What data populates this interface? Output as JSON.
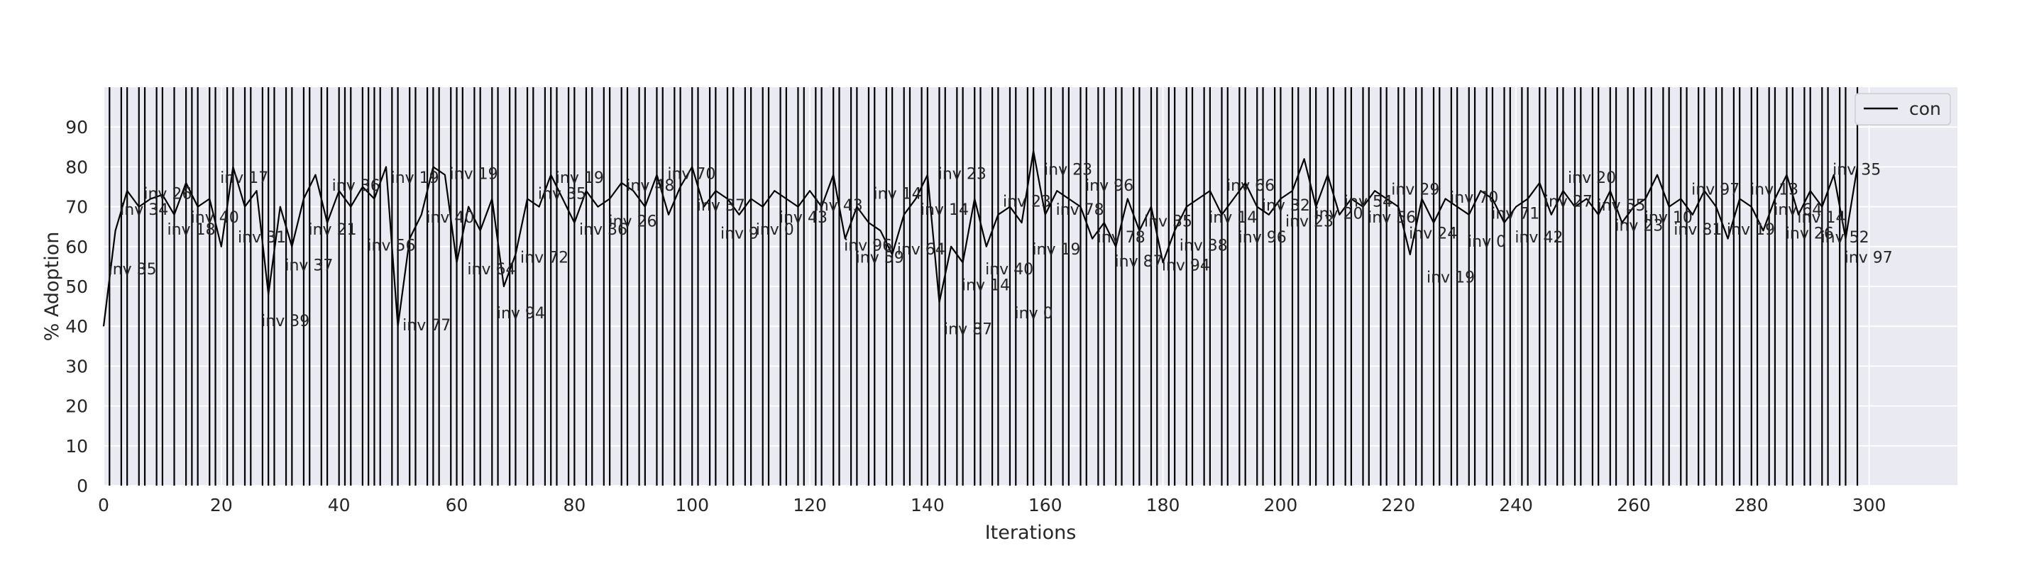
{
  "chart_data": {
    "type": "line",
    "title": "",
    "xlabel": "Iterations",
    "ylabel": "% Adoption",
    "xlim": [
      0,
      315
    ],
    "ylim": [
      0,
      100
    ],
    "xticks": [
      0,
      20,
      40,
      60,
      80,
      100,
      120,
      140,
      160,
      180,
      200,
      220,
      240,
      260,
      280,
      300
    ],
    "yticks": [
      0,
      10,
      20,
      30,
      40,
      50,
      60,
      70,
      80,
      90
    ],
    "grid": true,
    "legend_position": "top-right",
    "legend": [
      "con"
    ],
    "series": [
      {
        "name": "con",
        "color": "#000000",
        "x": [
          0,
          2,
          4,
          6,
          8,
          10,
          12,
          14,
          16,
          18,
          20,
          22,
          24,
          26,
          28,
          30,
          32,
          34,
          36,
          38,
          40,
          42,
          44,
          46,
          48,
          50,
          52,
          54,
          56,
          58,
          60,
          62,
          64,
          66,
          68,
          70,
          72,
          74,
          76,
          78,
          80,
          82,
          84,
          86,
          88,
          90,
          92,
          94,
          96,
          98,
          100,
          102,
          104,
          106,
          108,
          110,
          112,
          114,
          116,
          118,
          120,
          122,
          124,
          126,
          128,
          130,
          132,
          134,
          136,
          138,
          140,
          142,
          144,
          146,
          148,
          150,
          152,
          154,
          156,
          158,
          160,
          162,
          164,
          166,
          168,
          170,
          172,
          174,
          176,
          178,
          180,
          182,
          184,
          186,
          188,
          190,
          192,
          194,
          196,
          198,
          200,
          202,
          204,
          206,
          208,
          210,
          212,
          214,
          216,
          218,
          220,
          222,
          224,
          226,
          228,
          230,
          232,
          234,
          236,
          238,
          240,
          242,
          244,
          246,
          248,
          250,
          252,
          254,
          256,
          258,
          260,
          262,
          264,
          266,
          268,
          270,
          272,
          274,
          276,
          278,
          280,
          282,
          284,
          286,
          288,
          290,
          292,
          294,
          296,
          298
        ],
        "y": [
          40,
          64,
          74,
          70,
          72,
          73,
          68,
          76,
          70,
          72,
          60,
          80,
          70,
          74,
          48,
          70,
          60,
          72,
          78,
          66,
          74,
          70,
          75,
          72,
          80,
          40,
          62,
          68,
          80,
          78,
          56,
          70,
          64,
          72,
          50,
          58,
          72,
          70,
          78,
          72,
          66,
          74,
          70,
          72,
          76,
          74,
          70,
          78,
          68,
          75,
          80,
          70,
          74,
          72,
          68,
          72,
          70,
          74,
          72,
          70,
          74,
          70,
          78,
          62,
          70,
          66,
          64,
          58,
          68,
          72,
          78,
          46,
          60,
          56,
          72,
          60,
          68,
          70,
          66,
          84,
          68,
          74,
          72,
          70,
          62,
          66,
          60,
          72,
          64,
          70,
          56,
          64,
          70,
          72,
          74,
          68,
          72,
          76,
          70,
          68,
          72,
          74,
          82,
          70,
          78,
          68,
          72,
          70,
          74,
          72,
          70,
          58,
          72,
          66,
          72,
          70,
          68,
          74,
          72,
          66,
          70,
          72,
          76,
          68,
          74,
          70,
          72,
          68,
          74,
          66,
          70,
          72,
          78,
          70,
          72,
          68,
          74,
          70,
          62,
          72,
          70,
          64,
          72,
          78,
          68,
          74,
          70,
          78,
          62,
          80
        ]
      }
    ],
    "vlines_x": [
      1,
      3,
      4,
      6,
      7,
      9,
      10,
      12,
      14,
      15,
      16,
      18,
      19,
      21,
      22,
      24,
      25,
      27,
      28,
      29,
      31,
      32,
      34,
      35,
      37,
      38,
      40,
      41,
      42,
      44,
      45,
      46,
      47,
      49,
      50,
      52,
      53,
      55,
      56,
      57,
      59,
      60,
      61,
      63,
      64,
      66,
      67,
      69,
      70,
      72,
      73,
      75,
      76,
      77,
      79,
      80,
      82,
      83,
      85,
      86,
      88,
      89,
      91,
      92,
      94,
      95,
      97,
      98,
      100,
      101,
      103,
      104,
      106,
      107,
      109,
      110,
      112,
      113,
      115,
      116,
      118,
      119,
      121,
      122,
      124,
      125,
      127,
      128,
      130,
      131,
      133,
      134,
      136,
      137,
      139,
      140,
      142,
      143,
      145,
      146,
      148,
      149,
      151,
      152,
      154,
      155,
      157,
      158,
      160,
      161,
      163,
      164,
      166,
      167,
      169,
      170,
      172,
      173,
      175,
      176,
      178,
      179,
      181,
      182,
      184,
      185,
      187,
      188,
      190,
      191,
      193,
      194,
      196,
      197,
      199,
      200,
      202,
      203,
      205,
      206,
      208,
      209,
      211,
      212,
      214,
      215,
      217,
      218,
      220,
      221,
      223,
      224,
      226,
      227,
      229,
      230,
      232,
      233,
      235,
      236,
      238,
      239,
      241,
      242,
      244,
      245,
      247,
      248,
      250,
      251,
      253,
      254,
      256,
      257,
      259,
      260,
      262,
      263,
      265,
      266,
      268,
      269,
      271,
      272,
      274,
      275,
      277,
      278,
      280,
      281,
      283,
      284,
      286,
      287,
      289,
      290,
      292,
      293,
      295,
      296,
      298
    ],
    "annotations": [
      {
        "x": 2,
        "y": 53,
        "text": "inv 35"
      },
      {
        "x": 4,
        "y": 68,
        "text": "inv 34"
      },
      {
        "x": 8,
        "y": 72,
        "text": "inv 26"
      },
      {
        "x": 12,
        "y": 63,
        "text": "inv 18"
      },
      {
        "x": 16,
        "y": 66,
        "text": "inv 40"
      },
      {
        "x": 21,
        "y": 76,
        "text": "inv 17"
      },
      {
        "x": 24,
        "y": 61,
        "text": "inv 31"
      },
      {
        "x": 28,
        "y": 40,
        "text": "inv 39"
      },
      {
        "x": 32,
        "y": 54,
        "text": "inv 37"
      },
      {
        "x": 36,
        "y": 63,
        "text": "inv 21"
      },
      {
        "x": 40,
        "y": 74,
        "text": "inv 36"
      },
      {
        "x": 46,
        "y": 59,
        "text": "inv 56"
      },
      {
        "x": 50,
        "y": 76,
        "text": "inv 19"
      },
      {
        "x": 52,
        "y": 39,
        "text": "inv 77"
      },
      {
        "x": 56,
        "y": 66,
        "text": "inv 40"
      },
      {
        "x": 60,
        "y": 77,
        "text": "inv 19"
      },
      {
        "x": 63,
        "y": 53,
        "text": "inv 64"
      },
      {
        "x": 68,
        "y": 42,
        "text": "inv 94"
      },
      {
        "x": 72,
        "y": 56,
        "text": "inv 72"
      },
      {
        "x": 75,
        "y": 72,
        "text": "inv 35"
      },
      {
        "x": 78,
        "y": 76,
        "text": "inv 19"
      },
      {
        "x": 82,
        "y": 63,
        "text": "inv 36"
      },
      {
        "x": 87,
        "y": 65,
        "text": "inv 26"
      },
      {
        "x": 90,
        "y": 74,
        "text": "inv 48"
      },
      {
        "x": 97,
        "y": 77,
        "text": "inv 70"
      },
      {
        "x": 102,
        "y": 69,
        "text": "inv 37"
      },
      {
        "x": 106,
        "y": 62,
        "text": "inv 9"
      },
      {
        "x": 112,
        "y": 63,
        "text": "inv 0"
      },
      {
        "x": 116,
        "y": 66,
        "text": "inv 43"
      },
      {
        "x": 122,
        "y": 69,
        "text": "inv 43"
      },
      {
        "x": 127,
        "y": 59,
        "text": "inv 96"
      },
      {
        "x": 129,
        "y": 56,
        "text": "inv 59"
      },
      {
        "x": 132,
        "y": 72,
        "text": "inv 14"
      },
      {
        "x": 136,
        "y": 58,
        "text": "inv 64"
      },
      {
        "x": 140,
        "y": 68,
        "text": "inv 14"
      },
      {
        "x": 143,
        "y": 77,
        "text": "inv 23"
      },
      {
        "x": 144,
        "y": 38,
        "text": "inv 87"
      },
      {
        "x": 147,
        "y": 49,
        "text": "inv 14"
      },
      {
        "x": 151,
        "y": 53,
        "text": "inv 40"
      },
      {
        "x": 154,
        "y": 70,
        "text": "inv 23"
      },
      {
        "x": 156,
        "y": 42,
        "text": "inv 0"
      },
      {
        "x": 159,
        "y": 58,
        "text": "inv 19"
      },
      {
        "x": 161,
        "y": 78,
        "text": "inv 23"
      },
      {
        "x": 163,
        "y": 68,
        "text": "inv 78"
      },
      {
        "x": 168,
        "y": 74,
        "text": "inv 96"
      },
      {
        "x": 170,
        "y": 61,
        "text": "inv 78"
      },
      {
        "x": 173,
        "y": 55,
        "text": "inv 87"
      },
      {
        "x": 178,
        "y": 65,
        "text": "inv 35"
      },
      {
        "x": 181,
        "y": 54,
        "text": "inv 94"
      },
      {
        "x": 184,
        "y": 59,
        "text": "inv 38"
      },
      {
        "x": 189,
        "y": 66,
        "text": "inv 14"
      },
      {
        "x": 192,
        "y": 74,
        "text": "inv 66"
      },
      {
        "x": 194,
        "y": 61,
        "text": "inv 96"
      },
      {
        "x": 198,
        "y": 69,
        "text": "inv 32"
      },
      {
        "x": 202,
        "y": 65,
        "text": "inv 23"
      },
      {
        "x": 207,
        "y": 67,
        "text": "inv 20"
      },
      {
        "x": 212,
        "y": 70,
        "text": "inv 54"
      },
      {
        "x": 216,
        "y": 66,
        "text": "inv 56"
      },
      {
        "x": 220,
        "y": 73,
        "text": "inv 29"
      },
      {
        "x": 223,
        "y": 62,
        "text": "inv 24"
      },
      {
        "x": 226,
        "y": 51,
        "text": "inv 19"
      },
      {
        "x": 230,
        "y": 71,
        "text": "inv 70"
      },
      {
        "x": 233,
        "y": 60,
        "text": "inv 0"
      },
      {
        "x": 237,
        "y": 67,
        "text": "inv 71"
      },
      {
        "x": 241,
        "y": 61,
        "text": "inv 42"
      },
      {
        "x": 246,
        "y": 70,
        "text": "inv 27"
      },
      {
        "x": 250,
        "y": 76,
        "text": "inv 20"
      },
      {
        "x": 255,
        "y": 69,
        "text": "inv 55"
      },
      {
        "x": 258,
        "y": 64,
        "text": "inv 23"
      },
      {
        "x": 263,
        "y": 66,
        "text": "inv 10"
      },
      {
        "x": 268,
        "y": 63,
        "text": "inv 81"
      },
      {
        "x": 271,
        "y": 73,
        "text": "inv 97"
      },
      {
        "x": 277,
        "y": 63,
        "text": "inv 19"
      },
      {
        "x": 281,
        "y": 73,
        "text": "inv 13"
      },
      {
        "x": 285,
        "y": 68,
        "text": "inv 64"
      },
      {
        "x": 287,
        "y": 62,
        "text": "inv 26"
      },
      {
        "x": 289,
        "y": 66,
        "text": "inv 14"
      },
      {
        "x": 293,
        "y": 61,
        "text": "inv 52"
      },
      {
        "x": 295,
        "y": 78,
        "text": "inv 35"
      },
      {
        "x": 297,
        "y": 56,
        "text": "inv 97"
      }
    ]
  },
  "colors": {
    "plot_background": "#eaeaf2",
    "grid": "#ffffff",
    "line": "#000000",
    "vline": "#000000",
    "text": "#262626"
  }
}
